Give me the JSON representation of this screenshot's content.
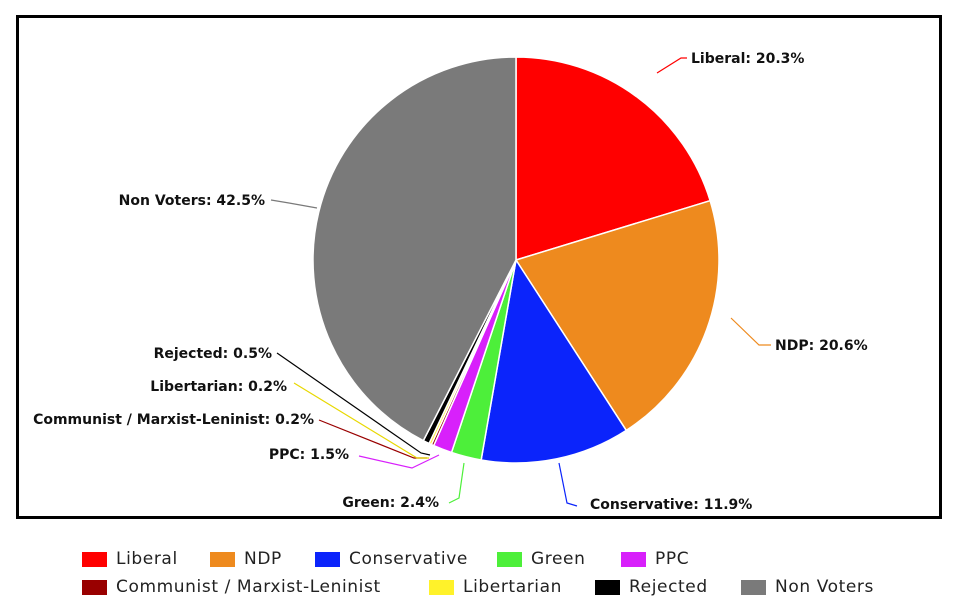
{
  "chart_data": {
    "type": "pie",
    "slices": [
      {
        "name": "Liberal",
        "value": 20.3,
        "label": "Liberal: 20.3%",
        "color": "#ff0000"
      },
      {
        "name": "NDP",
        "value": 20.6,
        "label": "NDP: 20.6%",
        "color": "#ee8a1e"
      },
      {
        "name": "Conservative",
        "value": 11.9,
        "label": "Conservative: 11.9%",
        "color": "#0b24fb"
      },
      {
        "name": "Green",
        "value": 2.4,
        "label": "Green: 2.4%",
        "color": "#4def3a"
      },
      {
        "name": "PPC",
        "value": 1.5,
        "label": "PPC: 1.5%",
        "color": "#d820fb"
      },
      {
        "name": "Communist / Marxist-Leninist",
        "value": 0.2,
        "label": "Communist / Marxist-Leninist: 0.2%",
        "color": "#990000"
      },
      {
        "name": "Libertarian",
        "value": 0.2,
        "label": "Libertarian: 0.2%",
        "color": "#fff22a"
      },
      {
        "name": "Rejected",
        "value": 0.5,
        "label": "Rejected: 0.5%",
        "color": "#000000"
      },
      {
        "name": "Non Voters",
        "value": 42.5,
        "label": "Non Voters: 42.5%",
        "color": "#7a7a7a"
      }
    ],
    "legend": {
      "position": "bottom",
      "rows": [
        [
          "Liberal",
          "NDP",
          "Conservative",
          "Green",
          "PPC"
        ],
        [
          "Communist / Marxist-Leninist",
          "Libertarian",
          "Rejected",
          "Non Voters"
        ]
      ]
    }
  }
}
